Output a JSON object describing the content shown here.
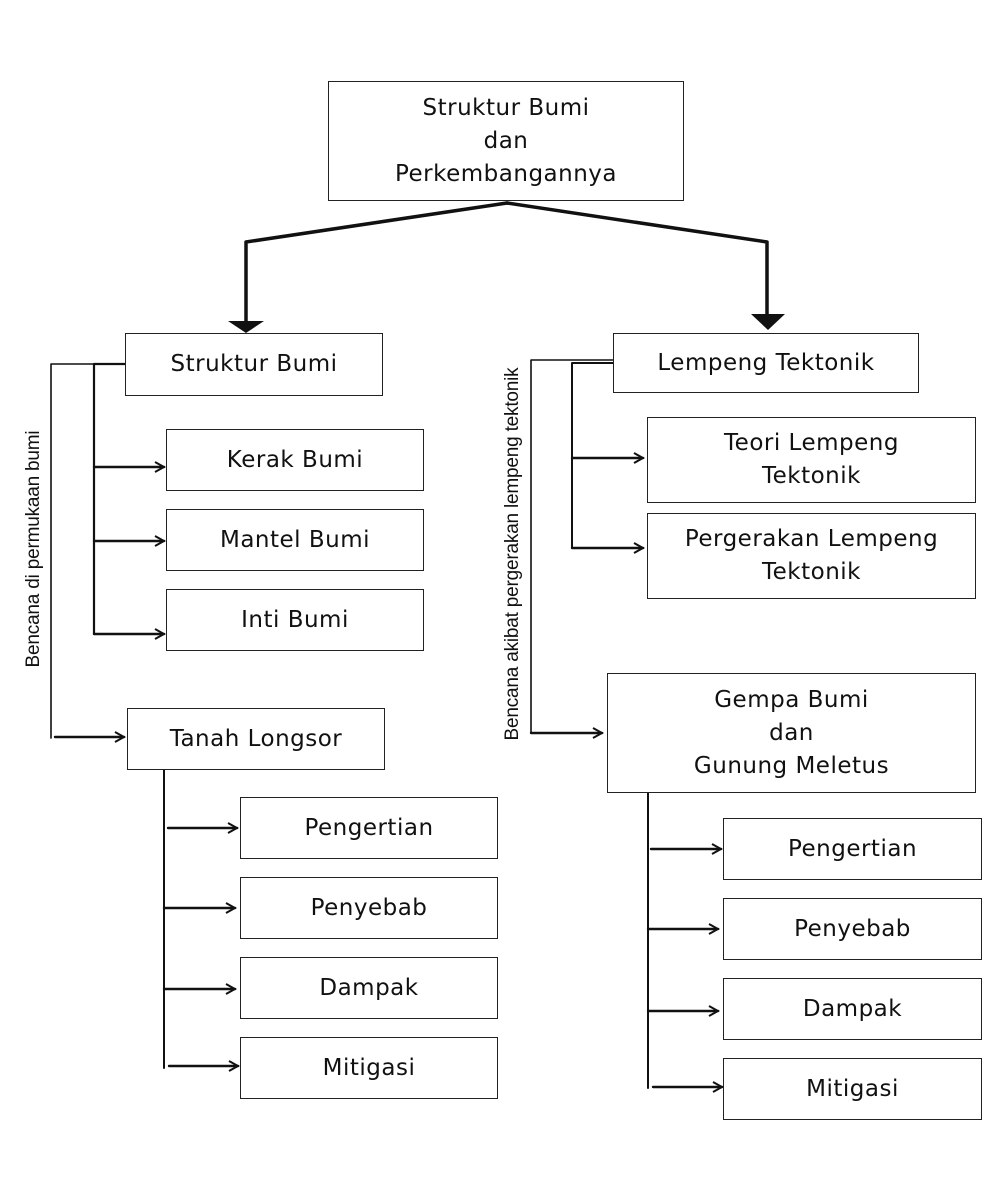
{
  "root": {
    "line1": "Struktur Bumi",
    "line2": "dan",
    "line3": "Perkembangannya"
  },
  "left": {
    "title": "Struktur Bumi",
    "side_label": "Bencana di permukaan bumi",
    "children": [
      "Kerak Bumi",
      "Mantel Bumi",
      "Inti Bumi"
    ],
    "disaster": {
      "title": "Tanah Longsor",
      "items": [
        "Pengertian",
        "Penyebab",
        "Dampak",
        "Mitigasi"
      ]
    }
  },
  "right": {
    "title": "Lempeng Tektonik",
    "side_label": "Bencana akibat pergerakan lempeng tektonik",
    "children": [
      {
        "line1": "Teori Lempeng",
        "line2": "Tektonik"
      },
      {
        "line1": "Pergerakan Lempeng",
        "line2": "Tektonik"
      }
    ],
    "disaster": {
      "line1": "Gempa Bumi",
      "line2": "dan",
      "line3": "Gunung Meletus",
      "items": [
        "Pengertian",
        "Penyebab",
        "Dampak",
        "Mitigasi"
      ]
    }
  }
}
